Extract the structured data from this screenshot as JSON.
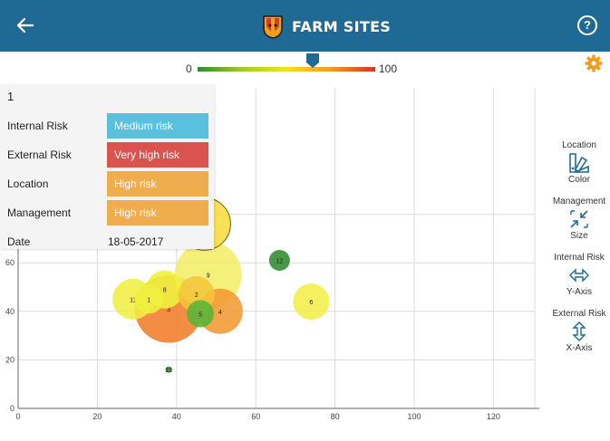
{
  "header": {
    "title": "FARM SITES",
    "back_icon": "arrow-left-icon",
    "help_icon": "question-circle-icon",
    "color": "#1f6a95"
  },
  "scale": {
    "min_label": "0",
    "max_label": "100",
    "handle_value": 65,
    "gradient_colors": [
      "#2e8b2e",
      "#9ccc2a",
      "#f6e21a",
      "#f29a1e",
      "#d9322b"
    ]
  },
  "settings_icon": "gear-icon",
  "info_card": {
    "id": "1",
    "rows": [
      {
        "label": "Internal Risk",
        "value": "Medium risk",
        "color": "#5bc0de"
      },
      {
        "label": "External Risk",
        "value": "Very high risk",
        "color": "#d9534f"
      },
      {
        "label": "Location",
        "value": "High risk",
        "color": "#f0ad4e"
      },
      {
        "label": "Management",
        "value": "High risk",
        "color": "#f0ad4e"
      }
    ],
    "date_label": "Date",
    "date_value": "18-05-2017"
  },
  "side_panel": {
    "items": [
      {
        "top_label": "Location",
        "icon": "color-palette-icon",
        "bottom_label": "Color"
      },
      {
        "top_label": "Management",
        "icon": "collapse-arrows-icon",
        "bottom_label": "Size"
      },
      {
        "top_label": "Internal Risk",
        "icon": "horizontal-arrows-icon",
        "bottom_label": "Y-Axis"
      },
      {
        "top_label": "External Risk",
        "icon": "vertical-arrows-icon",
        "bottom_label": "X-Axis"
      }
    ]
  },
  "chart_data": {
    "type": "scatter",
    "subtype": "bubble",
    "xlim": [
      0,
      130
    ],
    "ylim": [
      0,
      70
    ],
    "x_ticks": [
      0,
      20,
      40,
      60,
      80,
      100,
      120
    ],
    "y_ticks": [
      0,
      20,
      40,
      60
    ],
    "grid": true,
    "points": [
      {
        "label": "",
        "x": 47,
        "y": 76,
        "size": 58,
        "color": "#f7dd40"
      },
      {
        "label": "12",
        "x": 66,
        "y": 61,
        "size": 23,
        "color": "#2e8b2e"
      },
      {
        "label": "9",
        "x": 48,
        "y": 55,
        "size": 74,
        "color": "#f4ee66"
      },
      {
        "label": "6",
        "x": 74,
        "y": 44,
        "size": 40,
        "color": "#f4ee4a"
      },
      {
        "label": "3",
        "x": 38,
        "y": 41,
        "size": 75,
        "color": "#f27d2a"
      },
      {
        "label": "4",
        "x": 51,
        "y": 40,
        "size": 50,
        "color": "#f39a32"
      },
      {
        "label": "2",
        "x": 45,
        "y": 47,
        "size": 40,
        "color": "#f3c63a"
      },
      {
        "label": "5",
        "x": 46,
        "y": 39,
        "size": 30,
        "color": "#56b536"
      },
      {
        "label": "8",
        "x": 37,
        "y": 49,
        "size": 42,
        "color": "#eef23e"
      },
      {
        "label": "11",
        "x": 29,
        "y": 45,
        "size": 45,
        "color": "#f0ef42"
      },
      {
        "label": "1",
        "x": 33,
        "y": 45,
        "size": 32,
        "color": "#eef040"
      },
      {
        "label": "13",
        "x": 38,
        "y": 16,
        "size": 7,
        "color": "#2e8b2e"
      }
    ]
  }
}
